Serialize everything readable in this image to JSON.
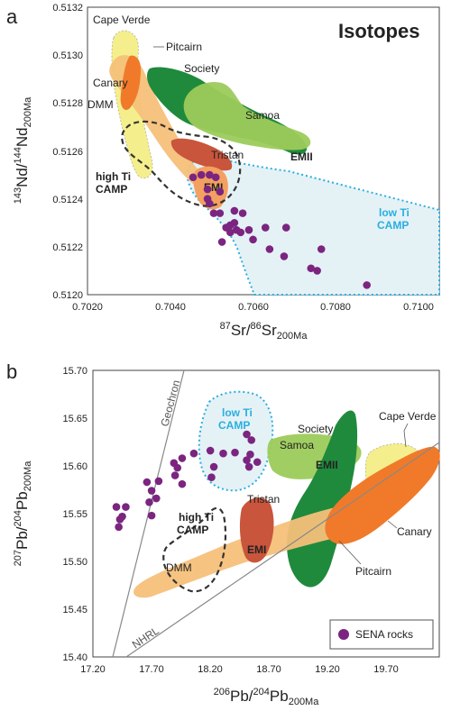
{
  "panel_a": {
    "letter": "a",
    "title": "Isotopes",
    "xlabel": {
      "s1": "87",
      "b1": "Sr/",
      "s2": "86",
      "b2": "Sr",
      "sub": "200Ma"
    },
    "ylabel": {
      "s1": "143",
      "b1": "Nd/",
      "s2": "144",
      "b2": "Nd",
      "sub": "200Ma"
    },
    "labels": {
      "cape_verde": "Cape Verde",
      "pitcairn": "Pitcairn",
      "canary": "Canary",
      "dmm": "DMM",
      "society": "Society",
      "samoa": "Samoa",
      "emii": "EMII",
      "tristan": "Tristan",
      "emi": "EMI",
      "high_ti_1": "high Ti",
      "high_ti_2": "CAMP",
      "low_ti_1": "low Ti",
      "low_ti_2": "CAMP"
    }
  },
  "panel_b": {
    "letter": "b",
    "xlabel": {
      "s1": "206",
      "b1": "Pb/",
      "s2": "204",
      "b2": "Pb",
      "sub": "200Ma"
    },
    "ylabel": {
      "s1": "207",
      "b1": "Pb/",
      "s2": "204",
      "b2": "Pb",
      "sub": "200Ma"
    },
    "labels": {
      "geochron": "Geochron",
      "nhrl": "NHRL",
      "low_ti_1": "low Ti",
      "low_ti_2": "CAMP",
      "society": "Society",
      "cape_verde": "Cape Verde",
      "samoa": "Samoa",
      "emii": "EMII",
      "tristan": "Tristan",
      "emi": "EMI",
      "high_ti_1": "high Ti",
      "high_ti_2": "CAMP",
      "dmm": "DMM",
      "pitcairn": "Pitcairn",
      "canary": "Canary"
    },
    "legend": {
      "label": "SENA rocks"
    }
  },
  "colors": {
    "sena": "#7b2580",
    "cape_verde": "#f4ef8c",
    "pitcairn": "#f6c07a",
    "canary": "#f07a2a",
    "society": "#1f8a3c",
    "samoa": "#9ccb5a",
    "tristan": "#c8553c",
    "low_ti_fill": "#e4f2f6",
    "low_ti_line": "#2aaee0",
    "high_ti_line": "#333333"
  },
  "chart_data": [
    {
      "type": "scatter",
      "xlabel": "87Sr/86Sr 200Ma",
      "ylabel": "143Nd/144Nd 200Ma",
      "xlim": [
        0.702,
        0.7105
      ],
      "ylim": [
        0.512,
        0.5132
      ],
      "xticks": [
        "0.7020",
        "0.7040",
        "0.7060",
        "0.7080",
        "0.7100"
      ],
      "yticks": [
        "0.5120",
        "0.5122",
        "0.5124",
        "0.5126",
        "0.5128",
        "0.5130",
        "0.5132"
      ],
      "series": [
        {
          "name": "SENA rocks",
          "points": [
            [
              0.70455,
              0.51249
            ],
            [
              0.70475,
              0.5125
            ],
            [
              0.70495,
              0.5125
            ],
            [
              0.7051,
              0.51249
            ],
            [
              0.7049,
              0.51244
            ],
            [
              0.7052,
              0.51243
            ],
            [
              0.7049,
              0.5124
            ],
            [
              0.70495,
              0.51238
            ],
            [
              0.70505,
              0.51234
            ],
            [
              0.7052,
              0.51234
            ],
            [
              0.70555,
              0.51235
            ],
            [
              0.70575,
              0.51234
            ],
            [
              0.70535,
              0.51228
            ],
            [
              0.70545,
              0.51229
            ],
            [
              0.70555,
              0.5123
            ],
            [
              0.7056,
              0.51227
            ],
            [
              0.7057,
              0.51226
            ],
            [
              0.70545,
              0.51226
            ],
            [
              0.70525,
              0.51222
            ],
            [
              0.7059,
              0.51227
            ],
            [
              0.7063,
              0.51228
            ],
            [
              0.7068,
              0.51228
            ],
            [
              0.706,
              0.51223
            ],
            [
              0.7064,
              0.51219
            ],
            [
              0.70675,
              0.51216
            ],
            [
              0.7074,
              0.51211
            ],
            [
              0.70755,
              0.5121
            ],
            [
              0.70765,
              0.51219
            ],
            [
              0.70875,
              0.51204
            ]
          ]
        }
      ]
    },
    {
      "type": "scatter",
      "xlabel": "206Pb/204Pb 200Ma",
      "ylabel": "207Pb/204Pb 200Ma",
      "xlim": [
        17.2,
        20.15
      ],
      "ylim": [
        15.4,
        15.7
      ],
      "xticks": [
        "17.20",
        "17.70",
        "18.20",
        "18.70",
        "19.20",
        "19.70"
      ],
      "yticks": [
        "15.40",
        "15.45",
        "15.50",
        "15.55",
        "15.60",
        "15.65",
        "15.70"
      ],
      "series": [
        {
          "name": "SENA rocks",
          "points": [
            [
              17.4,
              15.557
            ],
            [
              17.45,
              15.547
            ],
            [
              17.48,
              15.557
            ],
            [
              17.42,
              15.536
            ],
            [
              17.43,
              15.544
            ],
            [
              17.66,
              15.583
            ],
            [
              17.7,
              15.574
            ],
            [
              17.76,
              15.584
            ],
            [
              17.68,
              15.562
            ],
            [
              17.74,
              15.566
            ],
            [
              17.7,
              15.548
            ],
            [
              17.89,
              15.603
            ],
            [
              17.92,
              15.598
            ],
            [
              17.96,
              15.608
            ],
            [
              17.9,
              15.59
            ],
            [
              17.96,
              15.581
            ],
            [
              18.06,
              15.613
            ],
            [
              18.2,
              15.616
            ],
            [
              18.31,
              15.613
            ],
            [
              18.41,
              15.614
            ],
            [
              18.21,
              15.588
            ],
            [
              18.23,
              15.599
            ],
            [
              18.51,
              15.633
            ],
            [
              18.55,
              15.627
            ],
            [
              18.54,
              15.612
            ],
            [
              18.51,
              15.606
            ],
            [
              18.53,
              15.599
            ],
            [
              18.6,
              15.604
            ]
          ]
        }
      ]
    }
  ]
}
